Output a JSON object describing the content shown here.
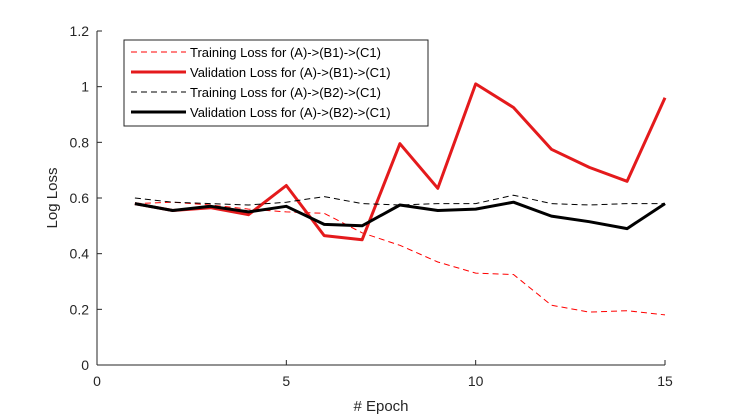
{
  "chart_data": {
    "type": "line",
    "xlabel": "# Epoch",
    "ylabel": "Log Loss",
    "xlim": [
      0,
      15
    ],
    "ylim": [
      0,
      1.2
    ],
    "xticks": [
      "0",
      "5",
      "10",
      "15"
    ],
    "yticks": [
      "0",
      "0.2",
      "0.4",
      "0.6",
      "0.8",
      "1",
      "1.2"
    ],
    "grid": false,
    "legend_position": "top-left",
    "x": [
      1,
      2,
      3,
      4,
      5,
      6,
      7,
      8,
      9,
      10,
      11,
      12,
      13,
      14,
      15
    ],
    "series": [
      {
        "name": "Training Loss for (A)->(B1)->(C1)",
        "color": "#ff0000",
        "style": "dashed",
        "width": "thin",
        "values": [
          0.58,
          0.585,
          0.575,
          0.56,
          0.55,
          0.545,
          0.475,
          0.43,
          0.37,
          0.33,
          0.325,
          0.215,
          0.19,
          0.195,
          0.18
        ]
      },
      {
        "name": "Validation Loss for (A)->(B1)->(C1)",
        "color": "#e41a1c",
        "style": "solid",
        "width": "thick",
        "values": [
          0.58,
          0.555,
          0.565,
          0.54,
          0.645,
          0.465,
          0.45,
          0.795,
          0.635,
          1.01,
          0.925,
          0.775,
          0.71,
          0.66,
          0.96
        ]
      },
      {
        "name": "Training Loss for (A)->(B2)->(C1)",
        "color": "#000000",
        "style": "dashed",
        "width": "thin",
        "values": [
          0.6,
          0.585,
          0.58,
          0.575,
          0.585,
          0.605,
          0.58,
          0.575,
          0.58,
          0.58,
          0.61,
          0.58,
          0.575,
          0.58,
          0.58
        ]
      },
      {
        "name": "Validation Loss for (A)->(B2)->(C1)",
        "color": "#000000",
        "style": "solid",
        "width": "thick",
        "values": [
          0.58,
          0.555,
          0.57,
          0.55,
          0.57,
          0.505,
          0.5,
          0.575,
          0.555,
          0.56,
          0.585,
          0.535,
          0.515,
          0.49,
          0.58
        ]
      }
    ]
  }
}
